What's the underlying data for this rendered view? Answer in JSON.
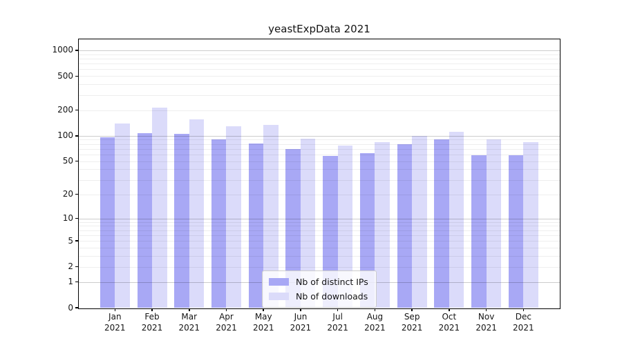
{
  "title": "yeastExpData 2021",
  "chart_data": {
    "type": "bar",
    "title": "yeastExpData 2021",
    "categories": [
      "Jan",
      "Feb",
      "Mar",
      "Apr",
      "May",
      "Jun",
      "Jul",
      "Aug",
      "Sep",
      "Oct",
      "Nov",
      "Dec"
    ],
    "x_tick_second_line": "2021",
    "series": [
      {
        "name": "Nb of distinct IPs",
        "color": "#a8a8f5",
        "values": [
          96,
          108,
          106,
          90,
          81,
          70,
          58,
          62,
          80,
          91,
          59,
          59
        ]
      },
      {
        "name": "Nb of downloads",
        "color": "#dbdbfa",
        "values": [
          140,
          215,
          155,
          130,
          134,
          93,
          77,
          84,
          100,
          111,
          91,
          84
        ]
      }
    ],
    "yscale": "symlog",
    "y_ticks": [
      0,
      1,
      2,
      5,
      10,
      20,
      50,
      100,
      200,
      500,
      1000
    ],
    "y_major_gridlines": [
      1,
      10,
      100,
      1000
    ],
    "ylim": [
      0,
      1340
    ],
    "grid": "horizontal major+minor, drawn over bars",
    "legend_position": "inside bottom-center",
    "colors": {
      "axis": "#000000",
      "text": "#141414",
      "grid_minor": "#eeeeee",
      "grid_major": "#c3c3c3"
    }
  }
}
